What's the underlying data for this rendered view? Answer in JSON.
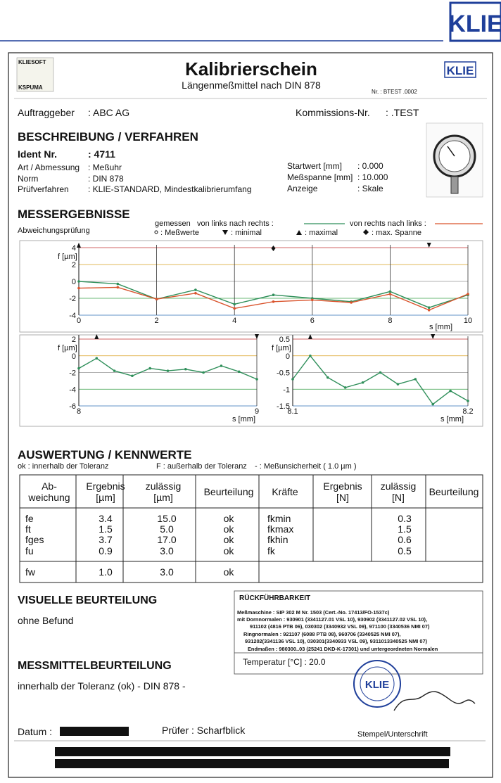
{
  "top_logo": "KLIE",
  "header": {
    "logo_left": [
      "KLIESOFT",
      "KSPUMA"
    ],
    "title": "Kalibrierschein",
    "subtitle": "Längenmeßmittel nach DIN 878",
    "logo_right": "KLIE",
    "number": "Nr. : BTEST .0002"
  },
  "client": {
    "label": "Auftraggeber",
    "value": ": ABC AG"
  },
  "commission": {
    "label": "Kommissions-Nr.",
    "value": ": .TEST"
  },
  "description": {
    "heading": "BESCHREIBUNG / VERFAHREN",
    "left": [
      {
        "label": "Ident Nr.",
        "value": ": 4711"
      },
      {
        "label": "Art / Abmessung",
        "value": ": Meßuhr"
      },
      {
        "label": "Norm",
        "value": ": DIN 878"
      },
      {
        "label": "Prüfverfahren",
        "value": ": KLIE-STANDARD, Mindestkalibrierumfang"
      }
    ],
    "right": [
      {
        "label": "Startwert [mm]",
        "value": ":  0.000"
      },
      {
        "label": "Meßspanne [mm]",
        "value": ": 10.000"
      },
      {
        "label": "Anzeige",
        "value": ": Skale"
      }
    ]
  },
  "results": {
    "heading": "MESSERGEBNISSE",
    "subheading": "Abweichungsprüfung",
    "legend": {
      "measured": "gemessen",
      "points": ": Meßwerte",
      "minimal": ": minimal",
      "maximal": ": maximal",
      "span": ": max.  Spanne"
    }
  },
  "chart_data": [
    {
      "type": "line",
      "xlabel": "s [mm]",
      "ylabel": "f [µm]",
      "x": [
        0,
        1,
        2,
        3,
        4,
        5,
        6,
        7,
        8,
        9,
        10
      ],
      "series": [
        {
          "name": "von links nach rechts :",
          "color": "#2f8f5a",
          "values": [
            0,
            -0.3,
            -2.1,
            -1.0,
            -2.7,
            -1.6,
            -2.0,
            -2.4,
            -1.2,
            -3.1,
            -1.6
          ]
        },
        {
          "name": "von rechts nach links :",
          "color": "#d9532c",
          "values": [
            -0.8,
            -0.7,
            -2.1,
            -1.4,
            -3.2,
            -2.4,
            -2.2,
            -2.5,
            -1.5,
            -3.4,
            -1.5
          ]
        }
      ],
      "xlim": [
        0,
        10
      ],
      "ylim": [
        -4,
        4
      ],
      "xticks": [
        0,
        2,
        4,
        6,
        8,
        10
      ],
      "yticks": [
        -4,
        -2,
        0,
        2,
        4
      ],
      "max_x": 0,
      "min_x": 9,
      "span_x": 5
    },
    {
      "type": "line",
      "xlabel": "s [mm]",
      "ylabel": "f [µm]",
      "x": [
        8,
        8.1,
        8.2,
        8.3,
        8.4,
        8.5,
        8.6,
        8.7,
        8.8,
        8.9,
        9
      ],
      "series": [
        {
          "color": "#2f8f5a",
          "values": [
            -1.5,
            -0.3,
            -1.8,
            -2.4,
            -1.5,
            -1.8,
            -1.6,
            -2.0,
            -1.2,
            -1.9,
            -2.8
          ]
        }
      ],
      "xlim": [
        8,
        9
      ],
      "ylim": [
        -6,
        2
      ],
      "xticks": [
        8,
        9
      ],
      "yticks": [
        -6,
        -4,
        -2,
        0,
        2
      ],
      "max_x": 8.1,
      "min_x": 9
    },
    {
      "type": "line",
      "xlabel": "s [mm]",
      "ylabel": "f [µm]",
      "x": [
        8.1,
        8.11,
        8.12,
        8.13,
        8.14,
        8.15,
        8.16,
        8.17,
        8.18,
        8.19,
        8.2
      ],
      "series": [
        {
          "color": "#2f8f5a",
          "values": [
            -0.7,
            0,
            -0.65,
            -0.95,
            -0.8,
            -0.5,
            -0.85,
            -0.7,
            -1.45,
            -1.05,
            -1.35
          ]
        }
      ],
      "xlim": [
        8.1,
        8.2
      ],
      "ylim": [
        -1.5,
        0.5
      ],
      "xticks": [
        8.1,
        8.2
      ],
      "yticks": [
        -1.5,
        -1,
        -0.5,
        0,
        0.5
      ],
      "max_x": 8.11,
      "min_x": 8.18
    }
  ],
  "evaluation": {
    "heading": "AUSWERTUNG / KENNWERTE",
    "notes": [
      "ok : innerhalb der Toleranz",
      "F : außerhalb der Toleranz",
      "- : Meßunsicherheit ( 1.0 µm )"
    ],
    "header": [
      [
        "Ab-",
        "weichung"
      ],
      [
        "Ergebnis",
        "[µm]"
      ],
      [
        "zulässig",
        "[µm]"
      ],
      [
        "Beurteilung"
      ],
      [
        "Kräfte"
      ],
      [
        "Ergebnis",
        "[N]"
      ],
      [
        "zulässig",
        "[N]"
      ],
      [
        "Beurteilung"
      ]
    ],
    "left_rows": [
      [
        "fe",
        "3.4",
        "15.0",
        "ok"
      ],
      [
        "ft",
        "1.5",
        "5.0",
        "ok"
      ],
      [
        "fges",
        "3.7",
        "17.0",
        "ok"
      ],
      [
        "fu",
        "0.9",
        "3.0",
        "ok"
      ],
      [
        "fw",
        "1.0",
        "3.0",
        "ok"
      ]
    ],
    "right_rows": [
      [
        "fkmin",
        "0.3"
      ],
      [
        "fkmax",
        "1.5"
      ],
      [
        "fkhin",
        "0.6"
      ],
      [
        "fk",
        "0.5"
      ]
    ]
  },
  "visual": {
    "heading": "VISUELLE BEURTEILUNG",
    "text": "ohne Befund"
  },
  "traceability": {
    "title": "RÜCKFÜHRBARKEIT",
    "lines": [
      "Meßmaschine     : SIP 302 M  Nr. 1503 (Cert.-No. 17413/FO-1537c)",
      "mit Dornnormalen : 930901 (3341127.01 VSL 10), 930902 (3341127.02 VSL 10),",
      "911102 (4816 PTB 06), 030302 (3340932 VSL 09), 971100 (3340536 NMI 07)",
      "Ringnormalen : 921107 (6088 PTB 08), 960706 (3340525 NMI 07),",
      "931202(3341136 VSL 10), 030301(3340933 VSL 09), 9311013340525 NMI 07)",
      "Endmaßen : 980300..03 (25241 DKD-K-17301) und untergeordneten Normalen"
    ],
    "temperature": "Temperatur [°C] :   20.0"
  },
  "device": {
    "heading": "MESSMITTELBEURTEILUNG",
    "text": "innerhalb der Toleranz (ok) - DIN 878 -"
  },
  "footer": {
    "date_label": "Datum :",
    "examiner": "Prüfer : Scharfblick",
    "stamp_label": "Stempel/Unterschrift",
    "stamp_text": "KLIE"
  }
}
